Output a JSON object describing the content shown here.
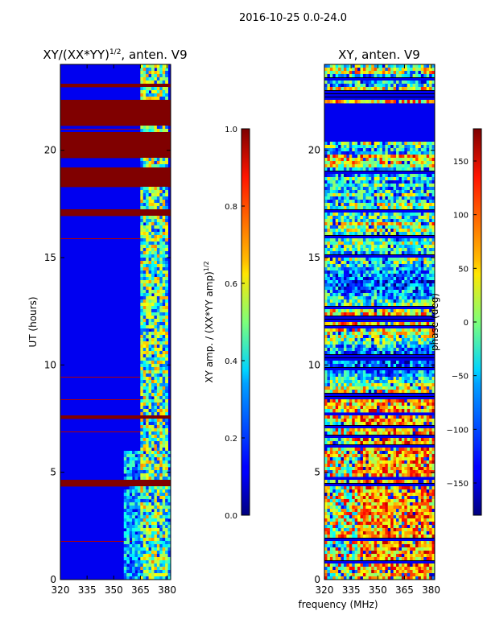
{
  "suptitle": "2016-10-25 0.0-24.0",
  "shared_xlabel": "frequency (MHz)",
  "chart_data": [
    {
      "type": "heatmap",
      "title": "XY/(XX*YY)^1/2, anten. V9",
      "title_main": "XY/(XX*YY)",
      "title_sup": "1/2",
      "title_tail": ", anten. V9",
      "xlabel": "",
      "ylabel": "UT (hours)",
      "xlim": [
        320,
        382
      ],
      "ylim": [
        0,
        24
      ],
      "xticks": [
        320,
        335,
        350,
        365,
        380
      ],
      "yticks": [
        0,
        5,
        10,
        15,
        20
      ],
      "colorscale": "jet",
      "colorbar": {
        "label_main": "XY amp. / (XX*YY amp)",
        "label_sup": "1/2",
        "range": [
          0.0,
          1.0
        ],
        "ticks": [
          "0.0",
          "0.2",
          "0.4",
          "0.6",
          "0.8",
          "1.0"
        ]
      },
      "saturated_hour_bands": [
        [
          18.3,
          19.2
        ],
        [
          19.7,
          20.8
        ],
        [
          21.2,
          22.3
        ],
        [
          23.0,
          23.1
        ],
        [
          16.9,
          17.2
        ],
        [
          7.5,
          7.7
        ],
        [
          4.4,
          4.6
        ]
      ],
      "active_frequency_band": [
        365,
        380
      ]
    },
    {
      "type": "heatmap",
      "title": "XY, anten. V9",
      "xlabel": "",
      "ylabel": "",
      "xlim": [
        320,
        382
      ],
      "ylim": [
        0,
        24
      ],
      "xticks": [
        320,
        335,
        350,
        365,
        380
      ],
      "yticks": [
        0,
        5,
        10,
        15,
        20
      ],
      "colorscale": "jet",
      "colorbar": {
        "label": "phase (deg)",
        "range": [
          -180,
          180
        ],
        "ticks": [
          "150",
          "100",
          "50",
          "0",
          "−50",
          "−100",
          "−150"
        ],
        "tick_values": [
          150,
          100,
          50,
          0,
          -50,
          -100,
          -150
        ]
      },
      "flat_hour_bands": [
        [
          20.4,
          22.2
        ],
        [
          7.6,
          7.8
        ],
        [
          4.6,
          4.8
        ]
      ]
    }
  ]
}
